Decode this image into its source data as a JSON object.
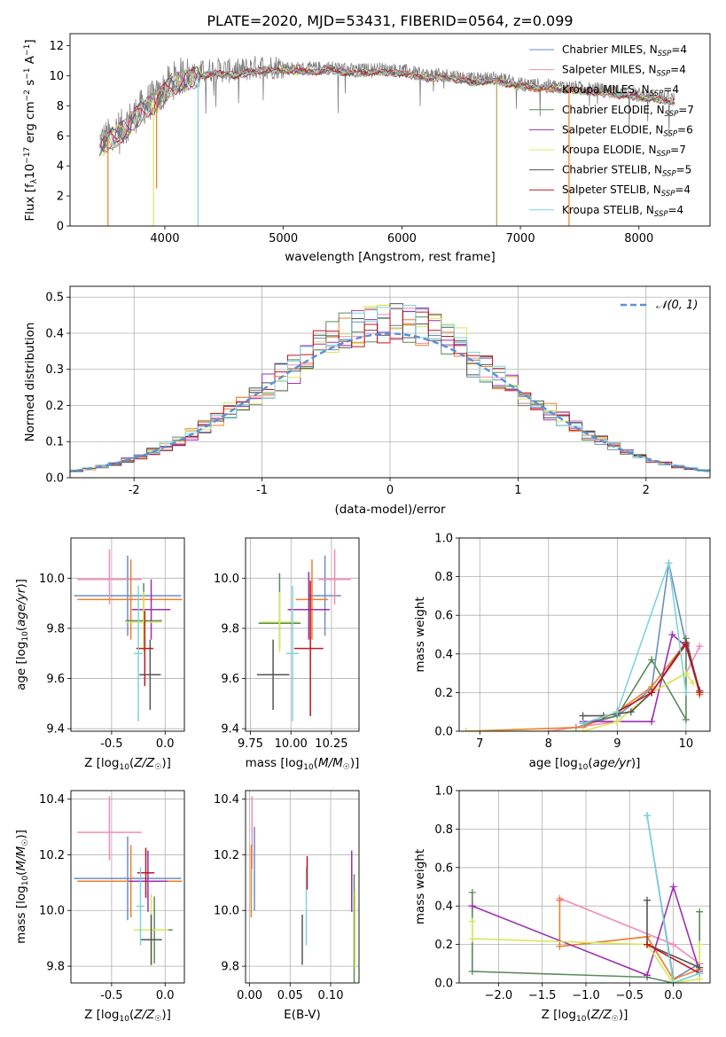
{
  "figure_title": "PLATE=2020, MJD=53431, FIBERID=0564, z=0.099",
  "series_styles": [
    {
      "name": "Chabrier MILES",
      "color": "#6c8ebf"
    },
    {
      "name": "Salpeter MILES",
      "color": "#f28cb8"
    },
    {
      "name": "Kroupa MILES",
      "color": "#ec7f2b"
    },
    {
      "name": "Chabrier ELODIE",
      "color": "#5b8a5b"
    },
    {
      "name": "Salpeter ELODIE",
      "color": "#9b30b0"
    },
    {
      "name": "Kroupa ELODIE",
      "color": "#d8e85a"
    },
    {
      "name": "Chabrier STELIB",
      "color": "#555555"
    },
    {
      "name": "Salpeter STELIB",
      "color": "#c0161c"
    },
    {
      "name": "Kroupa STELIB",
      "color": "#7fd3d8"
    }
  ],
  "chart_data": [
    {
      "id": "spectrum",
      "type": "line",
      "title": "",
      "xlabel": "wavelength [Angstrom, rest frame]",
      "ylabel": "Flux [f_λ 10^-17 erg cm^-2 s^-1 A^-1]",
      "xlim": [
        3200,
        8600
      ],
      "ylim": [
        0,
        12.8
      ],
      "xticks": [
        4000,
        5000,
        6000,
        7000,
        8000
      ],
      "yticks": [
        0,
        2,
        4,
        6,
        8,
        10,
        12
      ],
      "legend": [
        {
          "label": "Chabrier MILES, N",
          "sub": "SSP",
          "rest": "=4",
          "color": "#6c8ebf"
        },
        {
          "label": "Salpeter MILES, N",
          "sub": "SSP",
          "rest": "=4",
          "color": "#f28cb8"
        },
        {
          "label": "Kroupa MILES, N",
          "sub": "SSP",
          "rest": "=4",
          "color": "#ec7f2b"
        },
        {
          "label": "Chabrier ELODIE, N",
          "sub": "SSP",
          "rest": "=7",
          "color": "#5b8a5b"
        },
        {
          "label": "Salpeter ELODIE, N",
          "sub": "SSP",
          "rest": "=6",
          "color": "#9b30b0"
        },
        {
          "label": "Kroupa ELODIE, N",
          "sub": "SSP",
          "rest": "=7",
          "color": "#d8e85a"
        },
        {
          "label": "Chabrier STELIB, N",
          "sub": "SSP",
          "rest": "=5",
          "color": "#555555"
        },
        {
          "label": "Salpeter STELIB, N",
          "sub": "SSP",
          "rest": "=4",
          "color": "#c0161c"
        },
        {
          "label": "Kroupa STELIB, N",
          "sub": "SSP",
          "rest": "=4",
          "color": "#7fd3d8"
        }
      ],
      "legend_position": "top-right",
      "data_color": "#808080",
      "envelope_wavelength": [
        3450,
        3550,
        3650,
        3750,
        3850,
        3950,
        4050,
        4150,
        4250,
        4400,
        4600,
        4800,
        5000,
        5200,
        5400,
        5600,
        5800,
        6000,
        6200,
        6400,
        6600,
        6800,
        7000,
        7200,
        7400,
        7600,
        7800,
        8000,
        8200,
        8300
      ],
      "envelope_flux": [
        5.6,
        6.0,
        6.6,
        7.4,
        8.2,
        8.6,
        9.6,
        10.0,
        10.1,
        10.4,
        10.3,
        10.6,
        10.6,
        10.5,
        10.6,
        10.4,
        10.5,
        10.4,
        10.1,
        10.1,
        9.8,
        9.9,
        9.5,
        9.4,
        9.3,
        9.2,
        9.0,
        8.8,
        8.6,
        8.5
      ],
      "dips": [
        {
          "x": 3520,
          "y": 0.0,
          "color": "#ec7f2b"
        },
        {
          "x": 3905,
          "y": 0.0,
          "color": "#d8e85a"
        },
        {
          "x": 3930,
          "y": 2.5,
          "color": "#ec7f2b"
        },
        {
          "x": 4280,
          "y": 0.0,
          "color": "#7fd3d8"
        },
        {
          "x": 6800,
          "y": 0.0,
          "color": "#b8a060"
        },
        {
          "x": 7410,
          "y": 0.0,
          "color": "#ec7f2b"
        }
      ]
    },
    {
      "id": "residuals",
      "type": "histogram",
      "xlabel": "(data-model)/error",
      "ylabel": "Normed distribution",
      "xlim": [
        -2.5,
        2.5
      ],
      "ylim": [
        0,
        0.53
      ],
      "xticks": [
        -2,
        -1,
        0,
        1,
        2
      ],
      "yticks": [
        0.0,
        0.1,
        0.2,
        0.3,
        0.4,
        0.5
      ],
      "bin_width": 0.1,
      "reference_curve_label": "N(0,1)",
      "legend_position": "top-right",
      "grid": true
    },
    {
      "id": "age_vs_z",
      "type": "errorbar",
      "xlabel": "Z [log10(Z/Z☉)]",
      "ylabel": "age [log10(age/yr)]",
      "xlim": [
        -0.88,
        0.18
      ],
      "ylim": [
        9.39,
        10.16
      ],
      "xticks": [
        -0.5,
        0.0
      ],
      "yticks": [
        9.4,
        9.6,
        9.8,
        10.0
      ],
      "points": [
        {
          "x": -0.35,
          "xerr": [
            0.5,
            0.5
          ],
          "y": 9.93,
          "yerr": [
            0.16,
            0.16
          ],
          "color": "#6c8ebf"
        },
        {
          "x": -0.52,
          "xerr": [
            0.3,
            0.3
          ],
          "y": 9.995,
          "yerr": [
            0.1,
            0.12
          ],
          "color": "#f28cb8"
        },
        {
          "x": -0.32,
          "xerr": [
            0.5,
            0.48
          ],
          "y": 9.915,
          "yerr": [
            0.16,
            0.16
          ],
          "color": "#ec7f2b"
        },
        {
          "x": -0.2,
          "xerr": [
            0.17,
            0.17
          ],
          "y": 9.83,
          "yerr": [
            0.1,
            0.15
          ],
          "color": "#5b8a5b"
        },
        {
          "x": -0.13,
          "xerr": [
            0.18,
            0.18
          ],
          "y": 9.875,
          "yerr": [
            0.12,
            0.12
          ],
          "color": "#9b30b0"
        },
        {
          "x": -0.2,
          "xerr": [
            0.17,
            0.17
          ],
          "y": 9.825,
          "yerr": [
            0.12,
            0.12
          ],
          "color": "#d8e85a"
        },
        {
          "x": -0.14,
          "xerr": [
            0.1,
            0.1
          ],
          "y": 9.615,
          "yerr": [
            0.14,
            0.14
          ],
          "color": "#555555"
        },
        {
          "x": -0.19,
          "xerr": [
            0.08,
            0.08
          ],
          "y": 9.72,
          "yerr": [
            0.15,
            0.15
          ],
          "color": "#c0161c"
        },
        {
          "x": -0.25,
          "xerr": [
            0.04,
            0.04
          ],
          "y": 9.7,
          "yerr": [
            0.27,
            0.27
          ],
          "color": "#7fd3d8"
        }
      ]
    },
    {
      "id": "age_vs_mass",
      "type": "errorbar",
      "xlabel": "mass [log10(M/M☉)]",
      "ylabel": "",
      "xlim": [
        9.72,
        10.42
      ],
      "ylim": [
        9.39,
        10.16
      ],
      "xticks": [
        9.75,
        10.0,
        10.25
      ],
      "yticks": [
        9.4,
        9.6,
        9.8,
        10.0
      ],
      "points": [
        {
          "x": 10.21,
          "xerr": [
            0.1,
            0.1
          ],
          "y": 9.93,
          "yerr": [
            0.16,
            0.16
          ],
          "color": "#6c8ebf"
        },
        {
          "x": 10.27,
          "xerr": [
            0.1,
            0.1
          ],
          "y": 9.995,
          "yerr": [
            0.1,
            0.12
          ],
          "color": "#f28cb8"
        },
        {
          "x": 10.13,
          "xerr": [
            0.1,
            0.1
          ],
          "y": 9.915,
          "yerr": [
            0.16,
            0.16
          ],
          "color": "#ec7f2b"
        },
        {
          "x": 9.93,
          "xerr": [
            0.13,
            0.13
          ],
          "y": 9.82,
          "yerr": [
            0.1,
            0.2
          ],
          "color": "#5b8a5b"
        },
        {
          "x": 10.11,
          "xerr": [
            0.13,
            0.13
          ],
          "y": 9.875,
          "yerr": [
            0.12,
            0.15
          ],
          "color": "#9b30b0"
        },
        {
          "x": 9.93,
          "xerr": [
            0.12,
            0.12
          ],
          "y": 9.825,
          "yerr": [
            0.12,
            0.12
          ],
          "color": "#d8e85a"
        },
        {
          "x": 9.89,
          "xerr": [
            0.1,
            0.1
          ],
          "y": 9.615,
          "yerr": [
            0.14,
            0.14
          ],
          "color": "#555555"
        },
        {
          "x": 10.12,
          "xerr": [
            0.1,
            0.08
          ],
          "y": 9.72,
          "yerr": [
            0.27,
            0.27
          ],
          "color": "#c0161c"
        },
        {
          "x": 10.01,
          "xerr": [
            0.04,
            0.04
          ],
          "y": 9.7,
          "yerr": [
            0.27,
            0.27
          ],
          "color": "#7fd3d8"
        }
      ]
    },
    {
      "id": "weight_vs_age",
      "type": "line",
      "xlabel": "age [log10(age/yr)]",
      "ylabel": "mass weight",
      "xlim": [
        6.7,
        10.35
      ],
      "ylim": [
        0,
        1.0
      ],
      "xticks": [
        7,
        8,
        9,
        10
      ],
      "yticks": [
        0.0,
        0.2,
        0.4,
        0.6,
        0.8,
        1.0
      ],
      "grid": true,
      "series": [
        {
          "color": "#6c8ebf",
          "x": [
            8.4,
            9.0,
            9.5,
            9.75,
            10.0,
            10.2
          ],
          "y": [
            0.02,
            0.08,
            0.22,
            0.87,
            0.45,
            0.2
          ]
        },
        {
          "color": "#f28cb8",
          "x": [
            8.0,
            9.0,
            9.5,
            10.0,
            10.2
          ],
          "y": [
            0.0,
            0.05,
            0.2,
            0.3,
            0.44
          ]
        },
        {
          "color": "#ec7f2b",
          "x": [
            6.8,
            8.5,
            9.0,
            9.5,
            10.0,
            10.2
          ],
          "y": [
            0.0,
            0.02,
            0.1,
            0.23,
            0.46,
            0.19
          ]
        },
        {
          "color": "#5b8a5b",
          "x": [
            8.5,
            9.0,
            9.5,
            10.0,
            10.0,
            10.2
          ],
          "y": [
            0.04,
            0.08,
            0.37,
            0.06,
            0.48,
            0.2
          ]
        },
        {
          "color": "#9b30b0",
          "x": [
            8.5,
            9.0,
            9.5,
            9.8,
            10.0,
            10.2
          ],
          "y": [
            0.05,
            0.05,
            0.05,
            0.5,
            0.44,
            0.2
          ]
        },
        {
          "color": "#d8e85a",
          "x": [
            6.8,
            8.5,
            9.0,
            9.5,
            10.0,
            10.1
          ],
          "y": [
            0.0,
            0.0,
            0.05,
            0.2,
            0.3,
            0.25
          ]
        },
        {
          "color": "#555555",
          "x": [
            8.5,
            8.8,
            9.2,
            9.5,
            10.0,
            10.2
          ],
          "y": [
            0.08,
            0.08,
            0.1,
            0.2,
            0.46,
            0.21
          ]
        },
        {
          "color": "#c0161c",
          "x": [
            9.0,
            9.5,
            10.0,
            10.2
          ],
          "y": [
            0.1,
            0.2,
            0.45,
            0.2
          ]
        },
        {
          "color": "#7fd3d8",
          "x": [
            8.5,
            9.0,
            9.75,
            10.0
          ],
          "y": [
            0.04,
            0.1,
            0.87,
            0.2
          ]
        }
      ]
    },
    {
      "id": "mass_vs_z",
      "type": "errorbar",
      "xlabel": "Z [log10(Z/Z☉)]",
      "ylabel": "mass [log10(M/M☉)]",
      "xlim": [
        -0.88,
        0.18
      ],
      "ylim": [
        9.74,
        10.43
      ],
      "xticks": [
        -0.5,
        0.0
      ],
      "yticks": [
        9.8,
        10.0,
        10.2,
        10.4
      ],
      "points": [
        {
          "x": -0.35,
          "xerr": [
            0.5,
            0.5
          ],
          "y": 10.115,
          "yerr": [
            0.15,
            0.15
          ],
          "color": "#6c8ebf"
        },
        {
          "x": -0.52,
          "xerr": [
            0.3,
            0.3
          ],
          "y": 10.28,
          "yerr": [
            0.1,
            0.13
          ],
          "color": "#f28cb8"
        },
        {
          "x": -0.32,
          "xerr": [
            0.5,
            0.48
          ],
          "y": 10.105,
          "yerr": [
            0.13,
            0.13
          ],
          "color": "#ec7f2b"
        },
        {
          "x": -0.1,
          "xerr": [
            0.17,
            0.17
          ],
          "y": 9.93,
          "yerr": [
            0.12,
            0.12
          ],
          "color": "#5b8a5b"
        },
        {
          "x": -0.16,
          "xerr": [
            0.18,
            0.18
          ],
          "y": 10.105,
          "yerr": [
            0.11,
            0.11
          ],
          "color": "#9b30b0"
        },
        {
          "x": -0.13,
          "xerr": [
            0.16,
            0.16
          ],
          "y": 9.93,
          "yerr": [
            0.13,
            0.13
          ],
          "color": "#d8e85a"
        },
        {
          "x": -0.13,
          "xerr": [
            0.1,
            0.1
          ],
          "y": 9.895,
          "yerr": [
            0.09,
            0.09
          ],
          "color": "#555555"
        },
        {
          "x": -0.18,
          "xerr": [
            0.08,
            0.08
          ],
          "y": 10.135,
          "yerr": [
            0.09,
            0.09
          ],
          "color": "#c0161c"
        },
        {
          "x": -0.23,
          "xerr": [
            0.04,
            0.04
          ],
          "y": 10.015,
          "yerr": [
            0.14,
            0.14
          ],
          "color": "#7fd3d8"
        }
      ]
    },
    {
      "id": "mass_vs_ebv",
      "type": "errorbar",
      "xlabel": "E(B-V)",
      "ylabel": "",
      "xlim": [
        -0.005,
        0.135
      ],
      "ylim": [
        9.74,
        10.43
      ],
      "xticks": [
        0.0,
        0.05,
        0.1
      ],
      "yticks": [
        9.8,
        10.0,
        10.2,
        10.4
      ],
      "points": [
        {
          "x": 0.003,
          "y": 10.28,
          "yerr": [
            0.13,
            0.13
          ],
          "color": "#f28cb8"
        },
        {
          "x": 0.002,
          "y": 10.105,
          "yerr": [
            0.13,
            0.13
          ],
          "color": "#ec7f2b"
        },
        {
          "x": 0.006,
          "y": 10.15,
          "yerr": [
            0.15,
            0.15
          ],
          "color": "#6c8ebf"
        },
        {
          "x": 0.065,
          "y": 9.895,
          "yerr": [
            0.09,
            0.09
          ],
          "color": "#555555"
        },
        {
          "x": 0.07,
          "y": 10.015,
          "yerr": [
            0.14,
            0.14
          ],
          "color": "#7fd3d8"
        },
        {
          "x": 0.071,
          "y": 10.135,
          "yerr": [
            0.06,
            0.06
          ],
          "color": "#c0161c"
        },
        {
          "x": 0.126,
          "y": 10.105,
          "yerr": [
            0.11,
            0.11
          ],
          "color": "#9b30b0"
        },
        {
          "x": 0.129,
          "y": 9.93,
          "yerr": [
            0.2,
            0.2
          ],
          "color": "#5b8a5b"
        },
        {
          "x": 0.13,
          "y": 9.93,
          "yerr": [
            0.14,
            0.14
          ],
          "color": "#d8e85a"
        }
      ]
    },
    {
      "id": "weight_vs_z",
      "type": "line",
      "xlabel": "Z [log10(Z/Z☉)]",
      "ylabel": "mass weight",
      "xlim": [
        -2.45,
        0.42
      ],
      "ylim": [
        0,
        1.0
      ],
      "xticks": [
        -2.0,
        -1.5,
        -1.0,
        -0.5,
        0.0
      ],
      "yticks": [
        0.0,
        0.2,
        0.4,
        0.6,
        0.8,
        1.0
      ],
      "grid": true,
      "series": [
        {
          "color": "#6c8ebf",
          "x": [
            -0.3,
            0.0,
            0.3
          ],
          "y": [
            0.87,
            0.02,
            0.1
          ]
        },
        {
          "color": "#f28cb8",
          "x": [
            -1.3,
            0.0,
            0.3
          ],
          "y": [
            0.44,
            0.2,
            0.1
          ]
        },
        {
          "color": "#ec7f2b",
          "x": [
            -1.3,
            -1.3,
            -0.3,
            0.0,
            0.3
          ],
          "y": [
            0.43,
            0.19,
            0.24,
            0.02,
            0.07
          ]
        },
        {
          "color": "#5b8a5b",
          "x": [
            -2.3,
            -2.3,
            -0.3,
            0.0,
            0.3,
            0.3
          ],
          "y": [
            0.47,
            0.06,
            0.03,
            0.0,
            0.05,
            0.37
          ]
        },
        {
          "color": "#9b30b0",
          "x": [
            -2.3,
            -0.3,
            0.0,
            0.3
          ],
          "y": [
            0.4,
            0.04,
            0.5,
            0.06
          ]
        },
        {
          "color": "#d8e85a",
          "x": [
            -2.3,
            -2.3,
            -0.3,
            0.0,
            0.3,
            0.3
          ],
          "y": [
            0.32,
            0.23,
            0.2,
            0.0,
            0.02,
            0.2
          ]
        },
        {
          "color": "#555555",
          "x": [
            -0.3,
            -0.3,
            0.3
          ],
          "y": [
            0.43,
            0.2,
            0.08
          ]
        },
        {
          "color": "#c0161c",
          "x": [
            -0.3,
            0.3
          ],
          "y": [
            0.2,
            0.05
          ]
        },
        {
          "color": "#7fd3d8",
          "x": [
            -0.3,
            0.0,
            0.3
          ],
          "y": [
            0.87,
            0.0,
            0.05
          ]
        }
      ]
    }
  ]
}
